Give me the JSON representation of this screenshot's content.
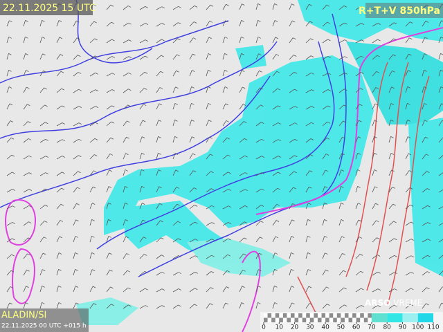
{
  "header": {
    "valid_time": "22.11.2025 15 UTC",
    "product": "R+T+V 850hPa"
  },
  "footer": {
    "model": "ALADIN/SI",
    "run": "22.11.2025 00 UTC +015 h",
    "brand": "ARSO",
    "brand_suffix": "VREME"
  },
  "legend": {
    "ticks": [
      0,
      10,
      20,
      30,
      40,
      50,
      60,
      70,
      80,
      90,
      100,
      110
    ],
    "colors": [
      "#8c8c8c",
      "#8c8c8c",
      "#8c8c8c",
      "#8c8c8c",
      "#8c8c8c",
      "#8c8c8c",
      "#8c8c8c",
      "#5fe0d0",
      "#33e6e6",
      "#9df0f0",
      "#22d8e8"
    ]
  }
}
